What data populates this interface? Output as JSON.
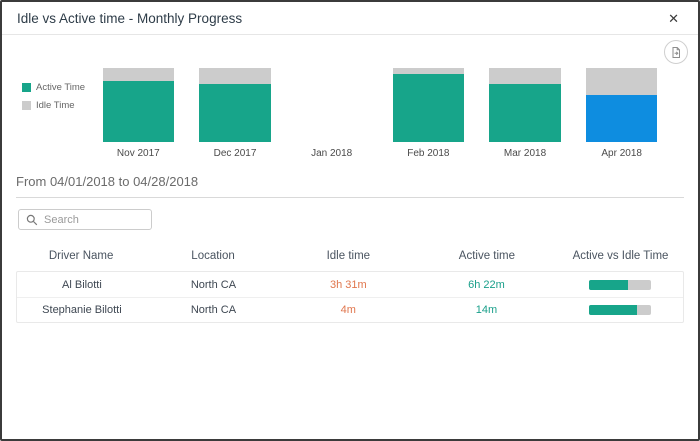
{
  "dialog": {
    "title": "Idle vs Active time - Monthly Progress",
    "close_glyph": "✕"
  },
  "colors": {
    "active": "#17a58a",
    "idle": "#cccccc",
    "selected": "#0e8de0",
    "idle_text": "#e0764d",
    "active_text": "#199f8a"
  },
  "chart_data": {
    "type": "stacked-bar-100",
    "title": "Idle vs Active time - Monthly Progress",
    "categories": [
      "Nov 2017",
      "Dec 2017",
      "Jan 2018",
      "Feb 2018",
      "Mar 2018",
      "Apr 2018"
    ],
    "series": [
      {
        "name": "Active Time",
        "color_key": "active",
        "values": [
          83,
          78,
          null,
          92,
          78,
          64
        ]
      },
      {
        "name": "Idle Time",
        "color_key": "idle",
        "values": [
          17,
          22,
          null,
          8,
          22,
          36
        ]
      }
    ],
    "highlighted_category": "Apr 2018",
    "legend_position": "left",
    "grid": false,
    "unit": "percent"
  },
  "period": {
    "label": "From 04/01/2018 to 04/28/2018"
  },
  "search": {
    "placeholder": "Search"
  },
  "table": {
    "columns": [
      "Driver Name",
      "Location",
      "Idle time",
      "Active time",
      "Active vs Idle Time"
    ],
    "rows": [
      {
        "driver": "Al Bilotti",
        "location": "North CA",
        "idle": "3h 31m",
        "active": "6h 22m",
        "active_pct": 64
      },
      {
        "driver": "Stephanie Bilotti",
        "location": "North CA",
        "idle": "4m",
        "active": "14m",
        "active_pct": 78
      }
    ]
  }
}
